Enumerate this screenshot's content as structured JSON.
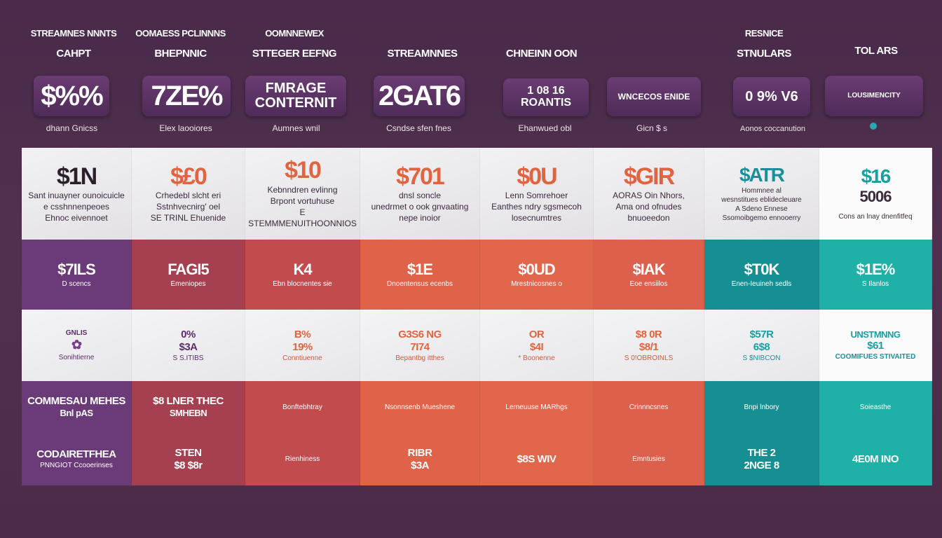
{
  "headers": [
    {
      "line1": "STREAMNES NNNTS",
      "line2": "CAHPT"
    },
    {
      "line1": "OOMAESS PCLINNNS",
      "line2": "BHEPNNIC"
    },
    {
      "line1": "OOMNNEWEX",
      "line2": "STTEGER EEFNG"
    },
    {
      "line1": "",
      "line2": "STREAMNNES"
    },
    {
      "line1": "",
      "line2": "CHNEINN OON"
    },
    {
      "line1": "RESNICE",
      "line2": "STNULARS"
    },
    {
      "line1": "",
      "line2": "TOL ARS"
    }
  ],
  "badges": [
    {
      "text": "$%%",
      "note": "dhann Gnicss",
      "color": "purple"
    },
    {
      "text": "7ZE%",
      "note": "Elex laooiores",
      "color": "purple"
    },
    {
      "text": "FMRAGE CONTERNIT",
      "note": "Aumnes wnil",
      "color": "purple"
    },
    {
      "text": "2GAT6",
      "note": "Csndse sfen fnes",
      "color": "purple"
    },
    {
      "text": "1 08 16 ROANTIS",
      "note": "Ehanwued obl",
      "color": "purple"
    },
    {
      "text": "WNCECOS ENIDE",
      "note": "Gicn $ s",
      "color": "purple"
    },
    {
      "text": "0 9% V6",
      "note": "Aonos coccanution",
      "color": "purple"
    },
    {
      "text": "LOUSIMENCITY",
      "note": "",
      "color": "purple"
    }
  ],
  "columns": [
    {
      "row0": {
        "price": "$1N",
        "desc": [
          "Sant inuayner ounoicuicle",
          "e csshnnenpeoes",
          "Ehnoc eivennoet"
        ]
      },
      "row1": {
        "price": "$7ILS",
        "desc": "D scencs"
      },
      "row2": {
        "top": "GNLIS",
        "mid": "✿",
        "bottom": "Sonihtierne"
      },
      "row3": {
        "title": "COMMESAU MEHES",
        "sub": "Bnl pAS"
      },
      "row4": {
        "title": "CODAIRETFHEA",
        "sub": "PNNGIOT Ccooerinses"
      }
    },
    {
      "row0": {
        "price": "$£0",
        "desc": [
          "Crhedebl slcht eri",
          "Sstnhvecnirg' oel",
          "SE TRINL Ehuenide"
        ]
      },
      "row1": {
        "price": "FAGI5",
        "desc": "Emeniopes"
      },
      "row2": {
        "top": "0%",
        "mid": "$3A",
        "bottom": "S S.ITIBS"
      },
      "row3": {
        "title": "$8 LNER THEC",
        "sub": "SMHEBN"
      },
      "row4": {
        "title": "STEN",
        "sub": "$8 $8r"
      }
    },
    {
      "row0": {
        "price": "$10",
        "desc": [
          "Kebnndren evlinng",
          "Brpont vortuhuse",
          "E STEMMMENUITHOONNIOS"
        ]
      },
      "row1": {
        "price": "K4",
        "desc": "Ebn blocnentes sie"
      },
      "row2": {
        "top": "B%",
        "mid": "19%",
        "bottom": "Conntiuenne"
      },
      "row3": {
        "title": "",
        "sub": "Bonftebhtray"
      },
      "row4": {
        "title": "",
        "sub": "Rienhiness"
      }
    },
    {
      "row0": {
        "price": "$701",
        "desc": [
          "dnsl soncle",
          "unedrmet o ook gnvaating",
          "nepe inoior"
        ]
      },
      "row1": {
        "price": "$1E",
        "desc": "Dnoentensus ecenbs"
      },
      "row2": {
        "top": "G3S6 NG",
        "mid": "7I74",
        "bottom": "Bepantbg itthes"
      },
      "row3": {
        "title": "",
        "sub": "Nsonnsenb Mueshene"
      },
      "row4": {
        "title": "RIBR",
        "sub": "$3A"
      }
    },
    {
      "row0": {
        "price": "$0U",
        "desc": [
          "Lenn Somrehoer",
          "Eanthes ndry sgsmecoh",
          "losecnumtres"
        ]
      },
      "row1": {
        "price": "$0UD",
        "desc": "Mrestnicosnes o"
      },
      "row2": {
        "top": "OR",
        "mid": "$4I",
        "bottom": "* Boonenne"
      },
      "row3": {
        "title": "",
        "sub": "Lerneuuse MARhgs"
      },
      "row4": {
        "title": "",
        "sub": "$8S WIV"
      }
    },
    {
      "row0": {
        "price": "$GIR",
        "desc": [
          "AORAS Oin Nhors,",
          "Ama ond ofnudes",
          "bnuoeedon"
        ]
      },
      "row1": {
        "price": "$IAK",
        "desc": "Eoe ensiilos"
      },
      "row2": {
        "top": "$8 0R",
        "mid": "$8/1",
        "bottom": "S 0!OBROINLS"
      },
      "row3": {
        "title": "",
        "sub": "Crinnncsnes"
      },
      "row4": {
        "title": "",
        "sub": "Emntusies"
      }
    },
    {
      "row0": {
        "price": "$ATR",
        "desc": [
          "Hommnee al",
          "wesnstitues eblidecleuare",
          "A Sdeno Ennese",
          "Ssomoibgemo ennooerry"
        ]
      },
      "row1": {
        "price": "$T0K",
        "desc": "Enen-Ieuineh sedls"
      },
      "row2": {
        "top": "$57R",
        "mid": "6$8",
        "bottom": "S $NIBCON"
      },
      "row3": {
        "title": "",
        "sub": "Bnpi lnbory"
      },
      "row4": {
        "title": "THE 2",
        "sub": "2NGE 8"
      }
    },
    {
      "row0": {
        "price": "$16",
        "sub": "5006",
        "desc": [
          "Cons an lnay dnenfitfeq"
        ]
      },
      "row1": {
        "price": "$1E%",
        "desc": "S Ilanlos"
      },
      "row2": {
        "top": "UNSTMNNG",
        "mid": "$61",
        "bottom": "COOMIFUES STIVAITED"
      },
      "row3": {
        "title": "",
        "sub": "Soieasthe"
      },
      "row4": {
        "title": "4E0M INO",
        "sub": ""
      }
    }
  ],
  "colors": {
    "background": "#4b2b4a",
    "purple": "#6b3a78",
    "red": "#c24b4e",
    "coral": "#e06249",
    "orange": "#e2664c",
    "teal_dark": "#168f93",
    "teal": "#1fb1a7",
    "price_orange": "#e0643f",
    "price_teal": "#1a9fa0"
  }
}
